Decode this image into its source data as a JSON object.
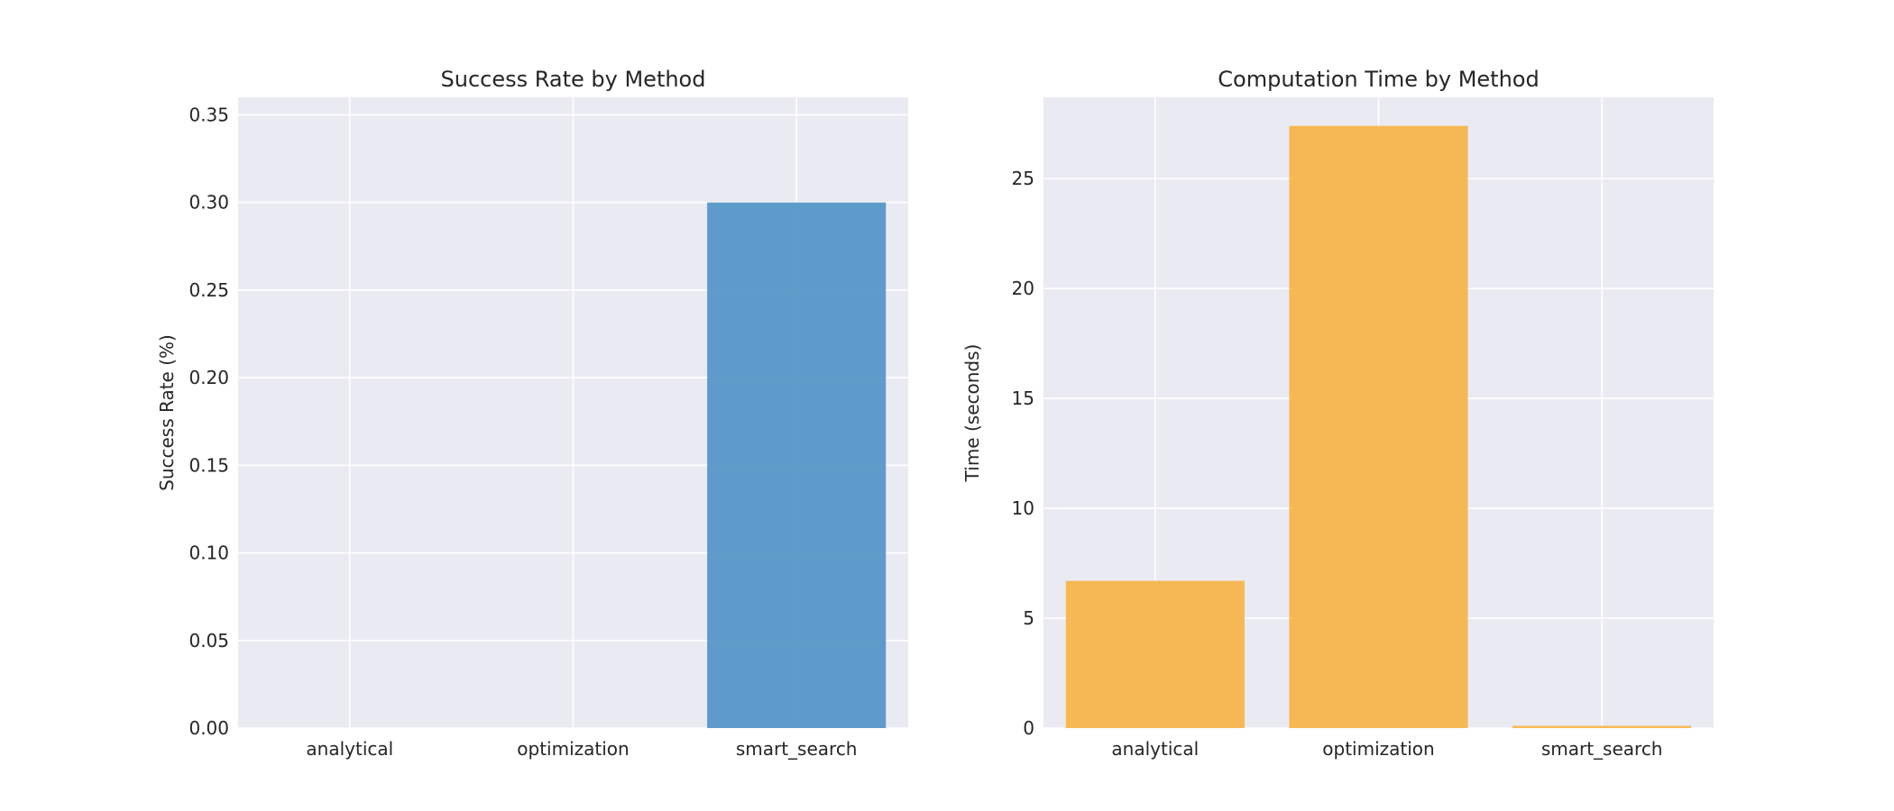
{
  "chart_data": [
    {
      "type": "bar",
      "title": "Success Rate by Method",
      "xlabel": "",
      "ylabel": "Success Rate (%)",
      "categories": [
        "analytical",
        "optimization",
        "smart_search"
      ],
      "values": [
        0.0,
        0.0,
        0.3
      ],
      "ylim": [
        0,
        0.36
      ],
      "yticks": [
        0.0,
        0.05,
        0.1,
        0.15,
        0.2,
        0.25,
        0.3,
        0.35
      ],
      "ytick_labels": [
        "0.00",
        "0.05",
        "0.10",
        "0.15",
        "0.20",
        "0.25",
        "0.30",
        "0.35"
      ],
      "bar_color": "#4a90c4",
      "grid": true,
      "background": "#eaeaf2"
    },
    {
      "type": "bar",
      "title": "Computation Time by Method",
      "xlabel": "",
      "ylabel": "Time (seconds)",
      "categories": [
        "analytical",
        "optimization",
        "smart_search"
      ],
      "values": [
        6.7,
        27.4,
        0.1
      ],
      "ylim": [
        0,
        28.7
      ],
      "yticks": [
        0,
        5,
        10,
        15,
        20,
        25
      ],
      "ytick_labels": [
        "0",
        "5",
        "10",
        "15",
        "20",
        "25"
      ],
      "bar_color": "#f7b13f",
      "grid": true,
      "background": "#eaeaf2"
    }
  ]
}
